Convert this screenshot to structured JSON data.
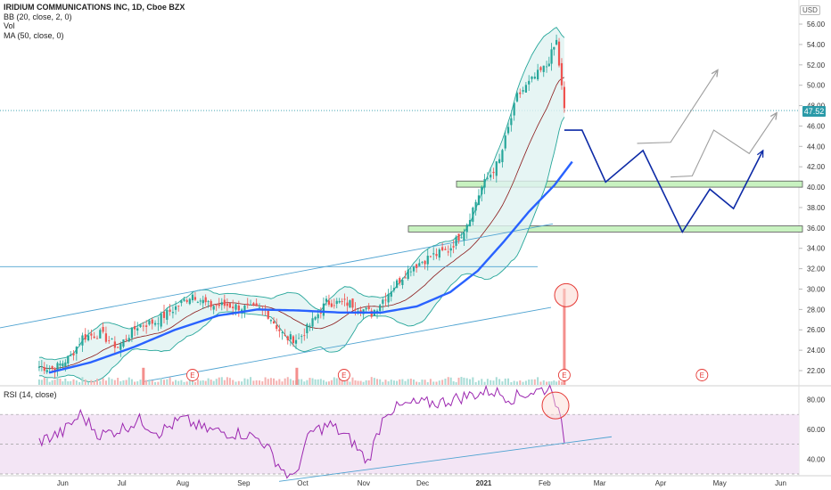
{
  "legend": {
    "title": "IRIDIUM COMMUNICATIONS INC, 1D, Cboe BZX",
    "bb": "BB (20, close, 2, 0)",
    "vol": "Vol",
    "ma": "MA (50, close, 0)"
  },
  "rsi_legend": "RSI (14, close)",
  "currency": "USD",
  "last_price": "47.52",
  "colors": {
    "up": "#26a69a",
    "down": "#ef5350",
    "ma": "#2962ff",
    "bb_line": "#26a69a",
    "bb_mid": "#8b1a1a",
    "bb_fill": "#e0f2f1",
    "rsi_line": "#9c27b0",
    "rsi_band": "#f3e5f5",
    "projection": "#0d2aa6",
    "alt_projection": "#9e9e9e",
    "zone": "#c8f2c0",
    "trendline": "#4fa3d1",
    "circle": "#e53935"
  },
  "chart_data": {
    "type": "candlestick",
    "symbol": "IRIDIUM COMMUNICATIONS INC",
    "interval": "1D",
    "x_tick_labels": [
      "Jun",
      "Jul",
      "Aug",
      "Sep",
      "Oct",
      "Nov",
      "Dec",
      "2021",
      "Feb",
      "Mar",
      "Apr",
      "May",
      "Jun"
    ],
    "y_tick_labels": [
      "22.00",
      "24.00",
      "26.00",
      "28.00",
      "30.00",
      "32.00",
      "34.00",
      "36.00",
      "38.00",
      "40.00",
      "42.00",
      "44.00",
      "46.00",
      "48.00",
      "50.00",
      "52.00",
      "54.00",
      "56.00"
    ],
    "ylim": [
      20.6,
      57.2
    ],
    "price_trend": [
      [
        "2020-05-20",
        22.4
      ],
      [
        "2020-05-28",
        22.2
      ],
      [
        "2020-06-05",
        23.4
      ],
      [
        "2020-06-11",
        25.3
      ],
      [
        "2020-06-20",
        25.6
      ],
      [
        "2020-06-29",
        24.3
      ],
      [
        "2020-07-09",
        26.4
      ],
      [
        "2020-07-18",
        26.8
      ],
      [
        "2020-07-27",
        28.0
      ],
      [
        "2020-08-06",
        29.5
      ],
      [
        "2020-08-14",
        28.4
      ],
      [
        "2020-08-25",
        28.4
      ],
      [
        "2020-09-03",
        28.1
      ],
      [
        "2020-09-12",
        27.9
      ],
      [
        "2020-09-22",
        25.2
      ],
      [
        "2020-09-29",
        25.1
      ],
      [
        "2020-10-06",
        26.8
      ],
      [
        "2020-10-13",
        28.7
      ],
      [
        "2020-10-25",
        28.6
      ],
      [
        "2020-11-05",
        27.6
      ],
      [
        "2020-11-15",
        30.0
      ],
      [
        "2020-11-25",
        32.1
      ],
      [
        "2020-12-05",
        33.2
      ],
      [
        "2020-12-14",
        33.8
      ],
      [
        "2020-12-22",
        35.8
      ],
      [
        "2020-12-31",
        40.0
      ],
      [
        "2021-01-09",
        42.6
      ],
      [
        "2021-01-18",
        48.9
      ],
      [
        "2021-01-27",
        50.8
      ],
      [
        "2021-02-02",
        51.9
      ],
      [
        "2021-02-07",
        54.3
      ],
      [
        "2021-02-11",
        47.5
      ]
    ],
    "ma50": [
      [
        "2020-05-25",
        21.8
      ],
      [
        "2020-06-15",
        22.8
      ],
      [
        "2020-07-07",
        24.3
      ],
      [
        "2020-07-28",
        26.0
      ],
      [
        "2020-08-19",
        27.4
      ],
      [
        "2020-09-08",
        28.0
      ],
      [
        "2020-09-29",
        27.9
      ],
      [
        "2020-10-20",
        27.7
      ],
      [
        "2020-11-10",
        27.7
      ],
      [
        "2020-11-28",
        28.3
      ],
      [
        "2020-12-15",
        29.7
      ],
      [
        "2020-12-29",
        31.8
      ],
      [
        "2021-01-11",
        34.6
      ],
      [
        "2021-01-24",
        37.6
      ],
      [
        "2021-02-06",
        40.2
      ],
      [
        "2021-02-15",
        42.5
      ]
    ],
    "volume_spikes": [
      {
        "date": "2020-07-12",
        "relative_volume": 0.08
      },
      {
        "date": "2020-09-28",
        "relative_volume": 0.08
      },
      {
        "date": "2021-02-11",
        "relative_volume": 0.45
      }
    ],
    "earnings_markers": [
      {
        "date": "2020-08-06",
        "label": "E"
      },
      {
        "date": "2020-10-22",
        "label": "E"
      },
      {
        "date": "2021-02-11",
        "label": "E"
      },
      {
        "date": "2021-04-22",
        "label": "E"
      }
    ],
    "support_zones": [
      [
        40.0,
        40.6
      ],
      [
        35.6,
        36.2
      ]
    ],
    "projection_path": [
      [
        "2021-02-11",
        45.6
      ],
      [
        "2021-02-20",
        45.6
      ],
      [
        "2021-03-04",
        40.5
      ],
      [
        "2021-03-23",
        43.6
      ],
      [
        "2021-04-12",
        35.6
      ],
      [
        "2021-04-26",
        39.8
      ],
      [
        "2021-05-08",
        37.9
      ],
      [
        "2021-05-23",
        43.6
      ]
    ],
    "alt_projection_paths": [
      [
        [
          "2021-03-20",
          44.3
        ],
        [
          "2021-04-06",
          44.4
        ],
        [
          "2021-04-30",
          51.5
        ]
      ],
      [
        [
          "2021-04-06",
          41.0
        ],
        [
          "2021-04-17",
          41.1
        ],
        [
          "2021-04-28",
          45.6
        ],
        [
          "2021-05-16",
          43.3
        ],
        [
          "2021-05-30",
          47.3
        ]
      ]
    ],
    "rsi": {
      "period": 14,
      "ylim": [
        30,
        90
      ],
      "tick_labels": [
        "40.00",
        "60.00",
        "80.00"
      ],
      "band": [
        30,
        70
      ],
      "points": [
        [
          "2020-05-20",
          52
        ],
        [
          "2020-06-01",
          58
        ],
        [
          "2020-06-10",
          70
        ],
        [
          "2020-06-20",
          56
        ],
        [
          "2020-06-30",
          60
        ],
        [
          "2020-07-10",
          66
        ],
        [
          "2020-07-20",
          58
        ],
        [
          "2020-08-01",
          67
        ],
        [
          "2020-08-12",
          60
        ],
        [
          "2020-08-22",
          58
        ],
        [
          "2020-09-01",
          57
        ],
        [
          "2020-09-10",
          53
        ],
        [
          "2020-09-20",
          34
        ],
        [
          "2020-09-26",
          26
        ],
        [
          "2020-10-05",
          58
        ],
        [
          "2020-10-15",
          63
        ],
        [
          "2020-10-26",
          52
        ],
        [
          "2020-11-03",
          38
        ],
        [
          "2020-11-12",
          72
        ],
        [
          "2020-11-25",
          77
        ],
        [
          "2020-12-10",
          78
        ],
        [
          "2020-12-22",
          82
        ],
        [
          "2021-01-05",
          86
        ],
        [
          "2021-01-15",
          81
        ],
        [
          "2021-01-25",
          85
        ],
        [
          "2021-02-05",
          88
        ],
        [
          "2021-02-11",
          54
        ]
      ]
    }
  }
}
